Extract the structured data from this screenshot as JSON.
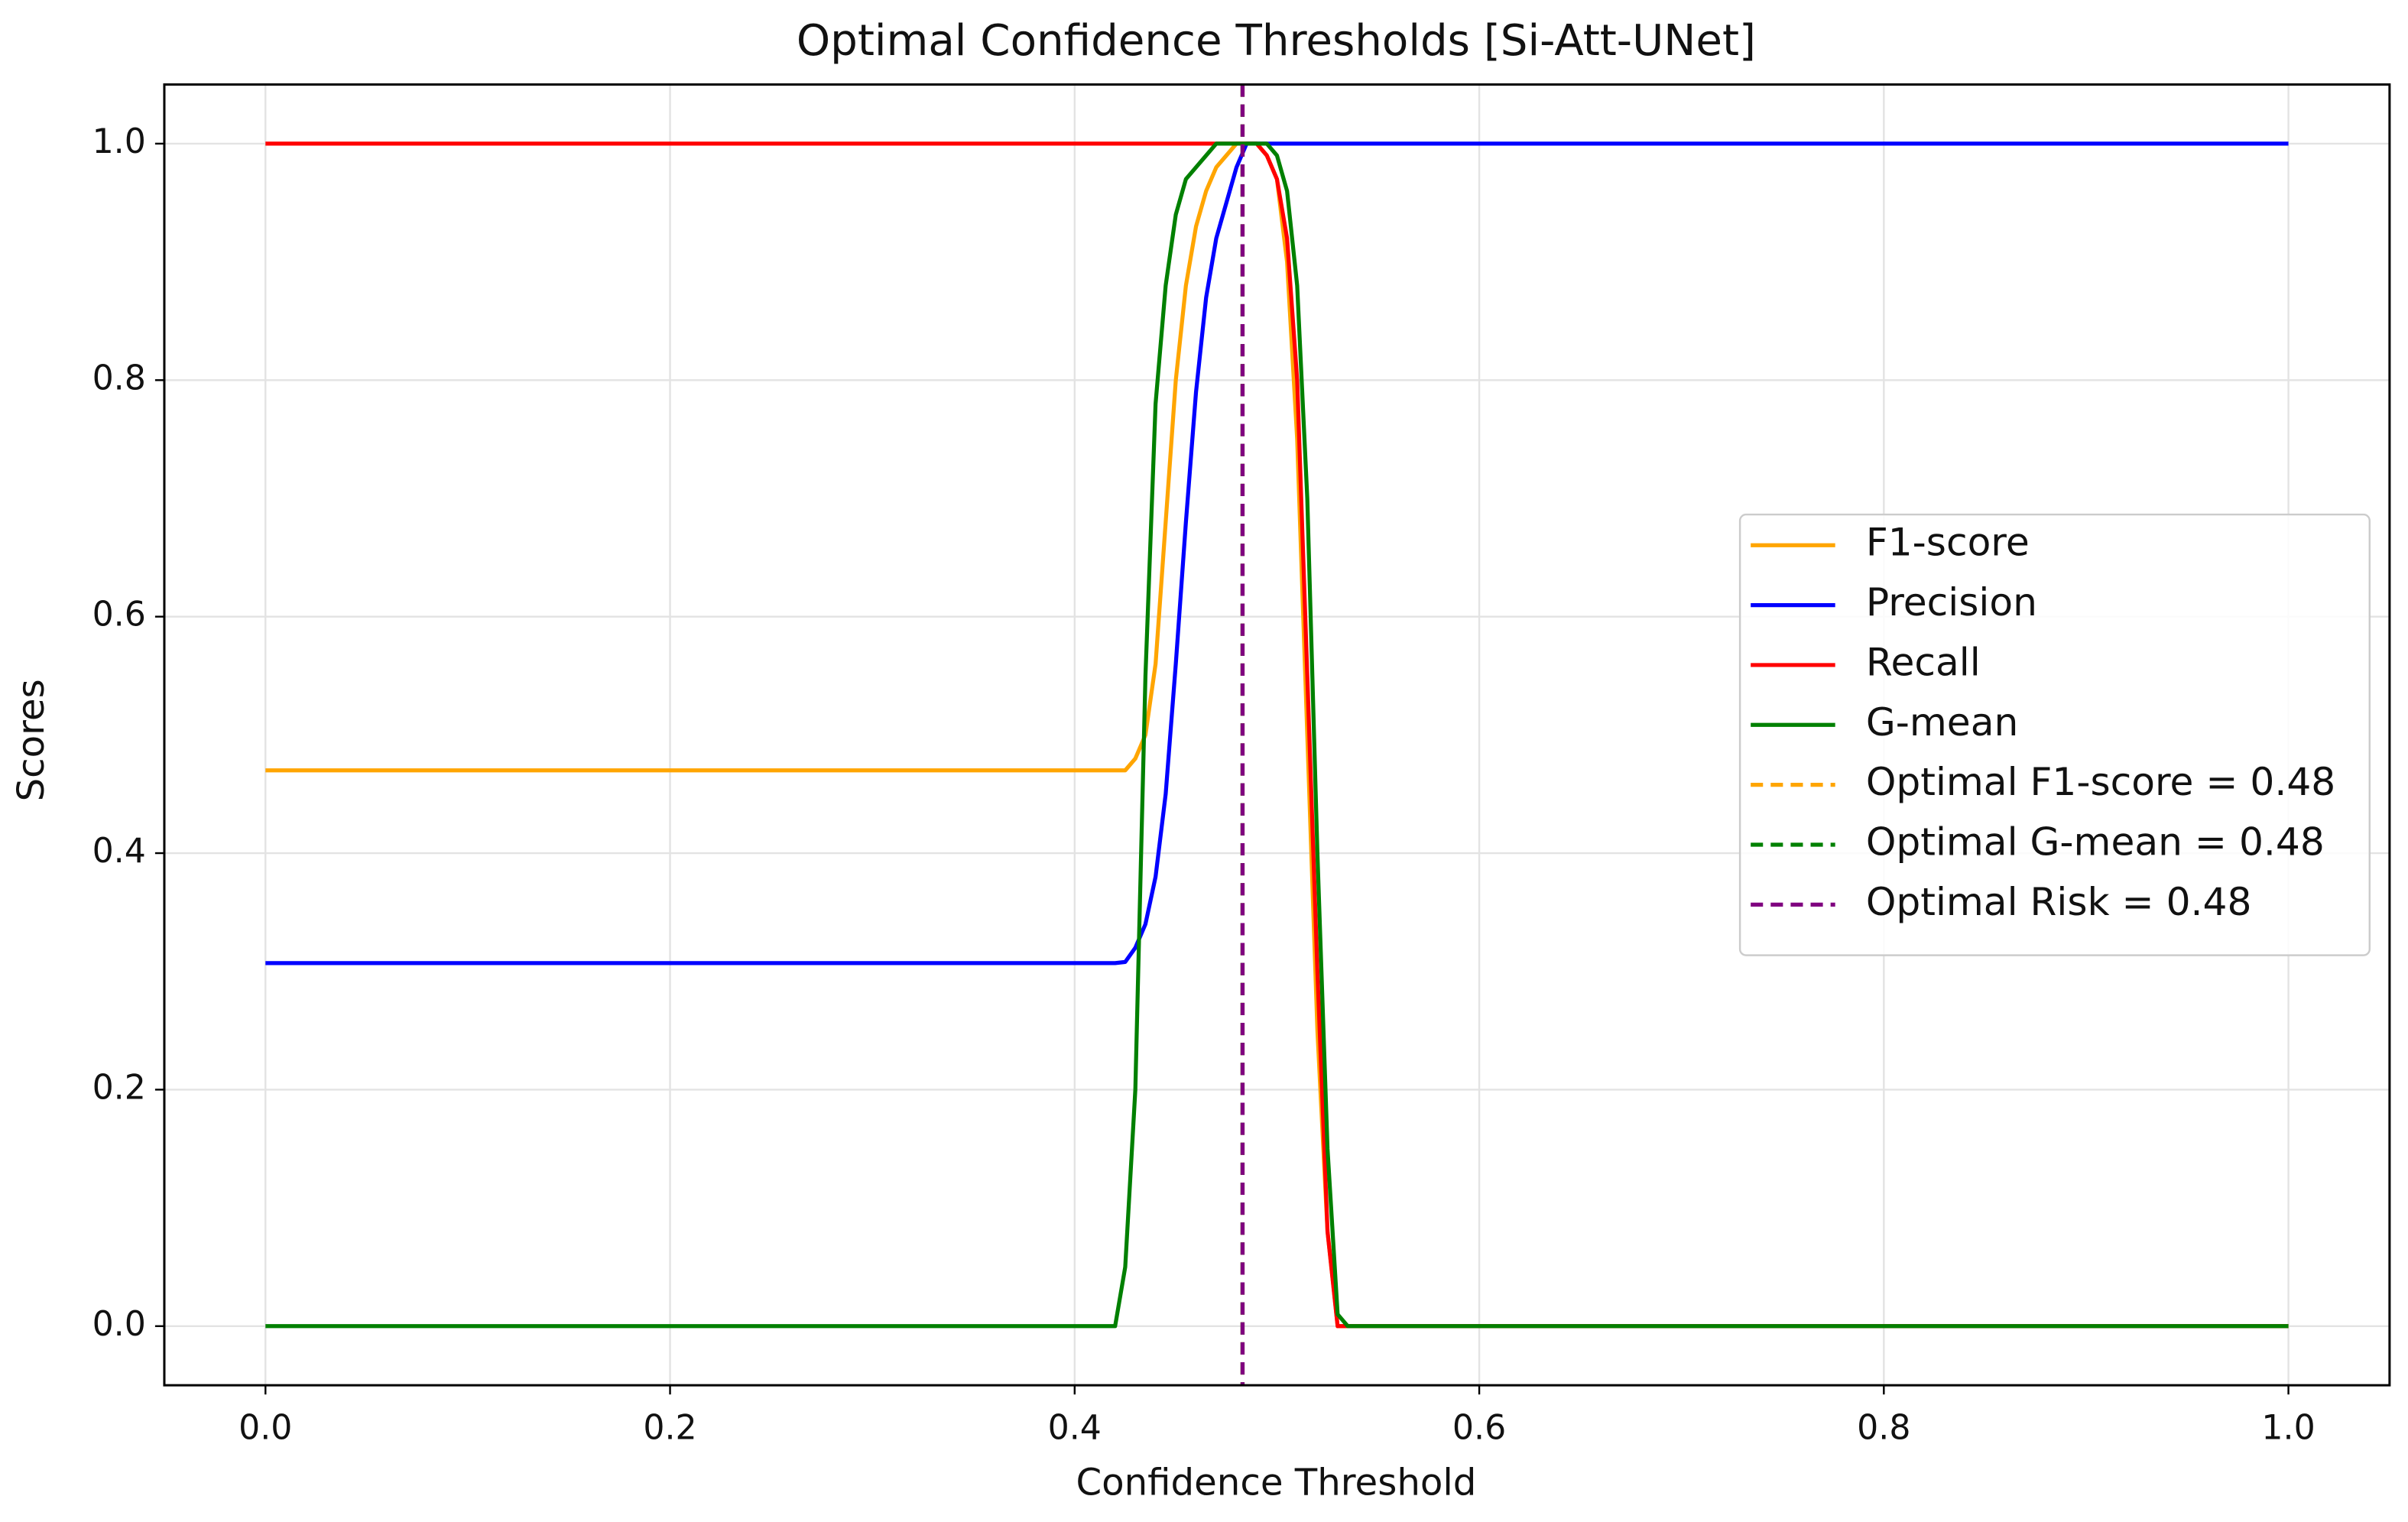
{
  "chart_data": {
    "type": "line",
    "title": "Optimal Confidence Thresholds  [Si-Att-UNet]",
    "xlabel": "Confidence Threshold",
    "ylabel": "Scores",
    "x": [
      0,
      0.2,
      0.4,
      0.42,
      0.425,
      0.43,
      0.435,
      0.44,
      0.445,
      0.45,
      0.455,
      0.46,
      0.465,
      0.47,
      0.475,
      0.48,
      0.485,
      0.49,
      0.495,
      0.5,
      0.505,
      0.51,
      0.515,
      0.52,
      0.525,
      0.53,
      0.535,
      0.6,
      0.8,
      1.0
    ],
    "series": [
      {
        "name": "F1-score",
        "color": "orange",
        "values": [
          0.47,
          0.47,
          0.47,
          0.47,
          0.47,
          0.48,
          0.5,
          0.56,
          0.68,
          0.8,
          0.88,
          0.93,
          0.96,
          0.98,
          0.99,
          1.0,
          1.0,
          1.0,
          0.99,
          0.97,
          0.9,
          0.75,
          0.5,
          0.25,
          0.08,
          0,
          0,
          0,
          0,
          0
        ]
      },
      {
        "name": "Precision",
        "color": "blue",
        "values": [
          0.307,
          0.307,
          0.307,
          0.307,
          0.308,
          0.32,
          0.34,
          0.38,
          0.45,
          0.56,
          0.68,
          0.79,
          0.87,
          0.92,
          0.95,
          0.98,
          1.0,
          1.0,
          1.0,
          1.0,
          1.0,
          1.0,
          1.0,
          1.0,
          1.0,
          1.0,
          1.0,
          1.0,
          1.0,
          1.0
        ]
      },
      {
        "name": "Recall",
        "color": "red",
        "values": [
          1.0,
          1.0,
          1.0,
          1.0,
          1.0,
          1.0,
          1.0,
          1.0,
          1.0,
          1.0,
          1.0,
          1.0,
          1.0,
          1.0,
          1.0,
          1.0,
          1.0,
          1.0,
          0.99,
          0.97,
          0.92,
          0.8,
          0.55,
          0.3,
          0.08,
          0,
          0,
          0,
          0,
          0
        ]
      },
      {
        "name": "G-mean",
        "color": "green",
        "values": [
          0,
          0,
          0,
          0,
          0.05,
          0.2,
          0.55,
          0.78,
          0.88,
          0.94,
          0.97,
          0.98,
          0.99,
          1.0,
          1.0,
          1.0,
          1.0,
          1.0,
          1.0,
          0.99,
          0.96,
          0.88,
          0.7,
          0.4,
          0.15,
          0.01,
          0,
          0,
          0,
          0
        ]
      }
    ],
    "vlines": [
      {
        "name": "Optimal F1-score = 0.48",
        "color": "orange",
        "value": 0.483
      },
      {
        "name": "Optimal G-mean = 0.48",
        "color": "green",
        "value": 0.483
      },
      {
        "name": "Optimal Risk = 0.48",
        "color": "purple",
        "value": 0.483
      }
    ],
    "xlim": [
      -0.05,
      1.05
    ],
    "ylim": [
      -0.05,
      1.05
    ],
    "xticks": [
      {
        "value": 0,
        "label": "0.0"
      },
      0.2,
      0.4,
      0.6,
      0.8,
      {
        "value": 1,
        "label": "1.0"
      }
    ],
    "yticks": [
      {
        "value": 0,
        "label": "0.0"
      },
      0.2,
      0.4,
      0.6,
      0.8,
      {
        "value": 1,
        "label": "1.0"
      }
    ],
    "grid": true,
    "legend": "center right"
  }
}
